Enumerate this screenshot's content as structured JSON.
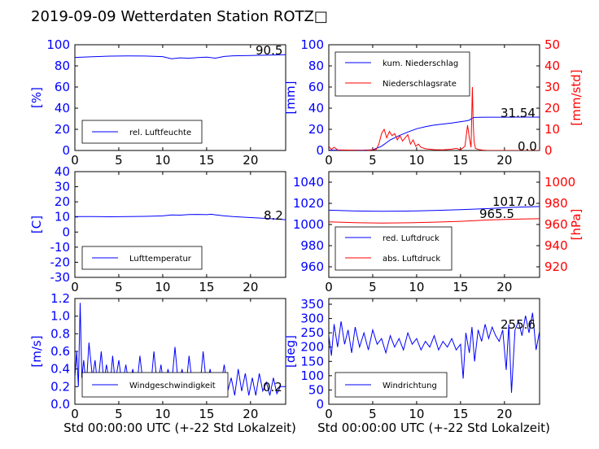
{
  "title": "2019-09-09 Wetterdaten Station ROTZ□",
  "colors": {
    "blue": "#0000ff",
    "red": "#ff0000",
    "black": "#000000"
  },
  "chart_data": [
    {
      "id": "humidity",
      "type": "line",
      "xlim": [
        0,
        24
      ],
      "ylim": [
        0,
        100
      ],
      "xticks": [
        0,
        5,
        10,
        15,
        20
      ],
      "yticks": [
        0,
        20,
        40,
        60,
        80,
        100
      ],
      "ylabel": "[%]",
      "series": [
        {
          "name": "rel. Luftfeuchte",
          "color": "#0000ff",
          "x": [
            0,
            2,
            4,
            6,
            8,
            10,
            11,
            12,
            13,
            14,
            15,
            16,
            17,
            18,
            20,
            22,
            24
          ],
          "y": [
            88,
            88.6,
            89.2,
            89.4,
            89.3,
            88.8,
            86.8,
            87.6,
            87.2,
            87.9,
            88.3,
            87.3,
            88.9,
            89.5,
            89.8,
            90.2,
            90.5
          ]
        }
      ],
      "last_labels": [
        "90.5"
      ]
    },
    {
      "id": "precip",
      "type": "line",
      "xlim": [
        0,
        24
      ],
      "ylim": [
        0,
        100
      ],
      "ylim_right": [
        0,
        50
      ],
      "xticks": [
        0,
        5,
        10,
        15,
        20
      ],
      "yticks": [
        0,
        20,
        40,
        60,
        80,
        100
      ],
      "yticks_right": [
        0,
        10,
        20,
        30,
        40,
        50
      ],
      "ylabel": "[mm]",
      "ylabel_right": "[mm/std]",
      "series": [
        {
          "name": "kum. Niederschlag",
          "axis": "left",
          "color": "#0000ff",
          "x": [
            0,
            4,
            5,
            6,
            7,
            8,
            9,
            10,
            11,
            12,
            13,
            14,
            15,
            15.5,
            16,
            16.3,
            16.6,
            17,
            18,
            20,
            22,
            24
          ],
          "y": [
            0.3,
            0.4,
            0.6,
            4,
            10,
            14,
            17.5,
            20.5,
            22.5,
            24,
            25,
            26,
            27.2,
            27.8,
            28.6,
            30.5,
            31.2,
            31.4,
            31.5,
            31.5,
            31.54,
            31.54
          ]
        },
        {
          "name": "Niederschlagsrate",
          "axis": "right",
          "color": "#ff0000",
          "x": [
            0,
            0.3,
            0.6,
            1,
            4,
            5.4,
            5.7,
            6,
            6.3,
            6.6,
            6.9,
            7.2,
            7.5,
            7.8,
            8.1,
            8.4,
            8.7,
            9,
            9.3,
            9.6,
            9.9,
            10.2,
            10.5,
            11,
            12,
            13,
            14,
            14.5,
            15,
            15.5,
            15.8,
            16,
            16.2,
            16.35,
            16.45,
            16.55,
            16.7,
            17,
            17.5,
            18,
            24
          ],
          "y": [
            2,
            0.5,
            1.5,
            0.3,
            0,
            0.5,
            3,
            8,
            10,
            6,
            9,
            7,
            8,
            5,
            7,
            4.5,
            6,
            7.5,
            3,
            5,
            2,
            3,
            1.5,
            0.8,
            0.4,
            0.3,
            0.6,
            1,
            0.3,
            2,
            12,
            6,
            1.5,
            30,
            12,
            4,
            1,
            0.5,
            0.2,
            0,
            0
          ]
        }
      ],
      "last_labels": [
        "31.54",
        "0.0"
      ]
    },
    {
      "id": "temperature",
      "type": "line",
      "xlim": [
        0,
        24
      ],
      "ylim": [
        -30,
        40
      ],
      "xticks": [
        0,
        5,
        10,
        15,
        20
      ],
      "yticks": [
        -30,
        -20,
        -10,
        0,
        10,
        20,
        30,
        40
      ],
      "ylabel": "[C]",
      "series": [
        {
          "name": "Lufttemperatur",
          "color": "#0000ff",
          "x": [
            0,
            2,
            4,
            6,
            8,
            10,
            11,
            12,
            13,
            14,
            15,
            15.5,
            16,
            17,
            18,
            20,
            22,
            24
          ],
          "y": [
            10.2,
            10.2,
            10.1,
            10.3,
            10.4,
            10.7,
            11.3,
            11.2,
            11.6,
            11.7,
            11.5,
            11.8,
            11.4,
            10.7,
            10.2,
            9.6,
            9.0,
            8.2
          ]
        }
      ],
      "last_labels": [
        "8.2"
      ]
    },
    {
      "id": "pressure",
      "type": "line",
      "xlim": [
        0,
        24
      ],
      "ylim": [
        950,
        1050
      ],
      "ylim_right": [
        910,
        1010
      ],
      "xticks": [
        0,
        5,
        10,
        15,
        20
      ],
      "yticks": [
        960,
        980,
        1000,
        1020,
        1040
      ],
      "yticks_right": [
        920,
        940,
        960,
        980,
        1000
      ],
      "ylabel_right": "[hPa]",
      "series": [
        {
          "name": "red. Luftdruck",
          "axis": "left",
          "color": "#0000ff",
          "x": [
            0,
            3,
            6,
            9,
            12,
            15,
            18,
            21,
            24
          ],
          "y": [
            1013.5,
            1012.8,
            1012.5,
            1012.7,
            1013.3,
            1014,
            1015,
            1016.2,
            1017.0
          ]
        },
        {
          "name": "abs. Luftdruck",
          "axis": "right",
          "color": "#ff0000",
          "x": [
            0,
            3,
            6,
            9,
            12,
            15,
            18,
            21,
            24
          ],
          "y": [
            962.5,
            961.8,
            961.4,
            961.6,
            962.2,
            963,
            964.2,
            965.0,
            965.5
          ]
        }
      ],
      "last_labels": [
        "1017.0",
        "965.5"
      ]
    },
    {
      "id": "wind_speed",
      "type": "line",
      "xlim": [
        0,
        24
      ],
      "ylim": [
        0,
        1.2
      ],
      "xticks": [
        0,
        5,
        10,
        15,
        20
      ],
      "yticks": [
        0.0,
        0.2,
        0.4,
        0.6,
        0.8,
        1.0,
        1.2
      ],
      "ylabel": "[m/s]",
      "series": [
        {
          "name": "Windgeschwindigkeit",
          "color": "#0000ff",
          "x": [
            0,
            0.2,
            0.4,
            0.6,
            0.8,
            1,
            1.3,
            1.6,
            2,
            2.3,
            2.6,
            3,
            3.3,
            3.6,
            4,
            4.3,
            4.6,
            5,
            5.4,
            5.8,
            6.2,
            6.6,
            7,
            7.4,
            7.8,
            8.2,
            8.6,
            9,
            9.4,
            9.8,
            10.2,
            10.6,
            11,
            11.4,
            11.8,
            12.2,
            12.6,
            13,
            13.4,
            13.8,
            14.2,
            14.6,
            15,
            15.4,
            15.8,
            16.2,
            16.6,
            17,
            17.4,
            17.8,
            18.2,
            18.6,
            19,
            19.4,
            19.8,
            20.2,
            20.6,
            21,
            21.4,
            21.8,
            22.2,
            22.6,
            23,
            23.4,
            24
          ],
          "y": [
            0.3,
            0.6,
            0.2,
            1.15,
            0.3,
            0.5,
            0.2,
            0.7,
            0.3,
            0.5,
            0.2,
            0.6,
            0.25,
            0.45,
            0.2,
            0.55,
            0.25,
            0.5,
            0.2,
            0.45,
            0.2,
            0.4,
            0.15,
            0.55,
            0.2,
            0.35,
            0.15,
            0.6,
            0.2,
            0.45,
            0.15,
            0.4,
            0.2,
            0.65,
            0.2,
            0.4,
            0.15,
            0.55,
            0.2,
            0.35,
            0.15,
            0.6,
            0.2,
            0.4,
            0.15,
            0.35,
            0.2,
            0.45,
            0.15,
            0.3,
            0.1,
            0.4,
            0.15,
            0.35,
            0.1,
            0.3,
            0.1,
            0.35,
            0.15,
            0.25,
            0.1,
            0.3,
            0.12,
            0.2,
            0.2
          ]
        }
      ],
      "last_labels": [
        "0.2"
      ]
    },
    {
      "id": "wind_direction",
      "type": "line",
      "xlim": [
        0,
        24
      ],
      "ylim": [
        0,
        370
      ],
      "xticks": [
        0,
        5,
        10,
        15,
        20
      ],
      "yticks": [
        0,
        50,
        100,
        150,
        200,
        250,
        300,
        350
      ],
      "ylabel": "[deg]",
      "series": [
        {
          "name": "Windrichtung",
          "color": "#0000ff",
          "x": [
            0,
            0.3,
            0.6,
            1,
            1.4,
            1.8,
            2.2,
            2.6,
            3,
            3.5,
            4,
            4.5,
            5,
            5.5,
            6,
            6.5,
            7,
            7.5,
            8,
            8.5,
            9,
            9.5,
            10,
            10.5,
            11,
            11.5,
            12,
            12.5,
            13,
            13.5,
            14,
            14.5,
            15,
            15.3,
            15.6,
            16,
            16.3,
            16.6,
            17,
            17.4,
            17.8,
            18.2,
            18.6,
            19,
            19.4,
            19.8,
            20.2,
            20.5,
            20.8,
            21.2,
            21.6,
            22,
            22.4,
            22.8,
            23.2,
            23.6,
            24
          ],
          "y": [
            240,
            170,
            280,
            200,
            290,
            210,
            260,
            180,
            270,
            200,
            250,
            190,
            260,
            210,
            230,
            180,
            240,
            200,
            230,
            190,
            250,
            210,
            230,
            190,
            220,
            200,
            240,
            190,
            220,
            200,
            230,
            190,
            210,
            90,
            250,
            180,
            270,
            150,
            260,
            220,
            280,
            230,
            270,
            240,
            220,
            260,
            120,
            280,
            40,
            260,
            290,
            240,
            310,
            250,
            320,
            190,
            256
          ]
        }
      ],
      "last_labels": [
        "255.6"
      ]
    }
  ],
  "xlabel_bottom": "Std 00:00:00 UTC (+-22 Std Lokalzeit)"
}
